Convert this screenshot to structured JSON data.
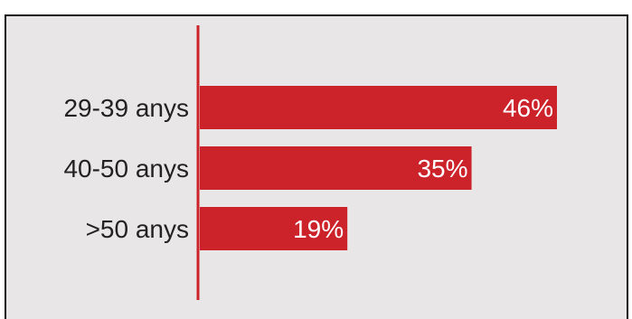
{
  "chart_data": {
    "type": "bar",
    "orientation": "horizontal",
    "categories": [
      "29-39 anys",
      "40-50 anys",
      ">50 anys"
    ],
    "values": [
      46,
      35,
      19
    ],
    "value_labels": [
      "46%",
      "35%",
      "19%"
    ],
    "xlim": [
      0,
      50
    ],
    "grid": false,
    "legend": "none"
  },
  "colors": {
    "bar": "#cc2229",
    "axis": "#cc2229",
    "background": "#e8e6e6",
    "frame": "#111111"
  }
}
